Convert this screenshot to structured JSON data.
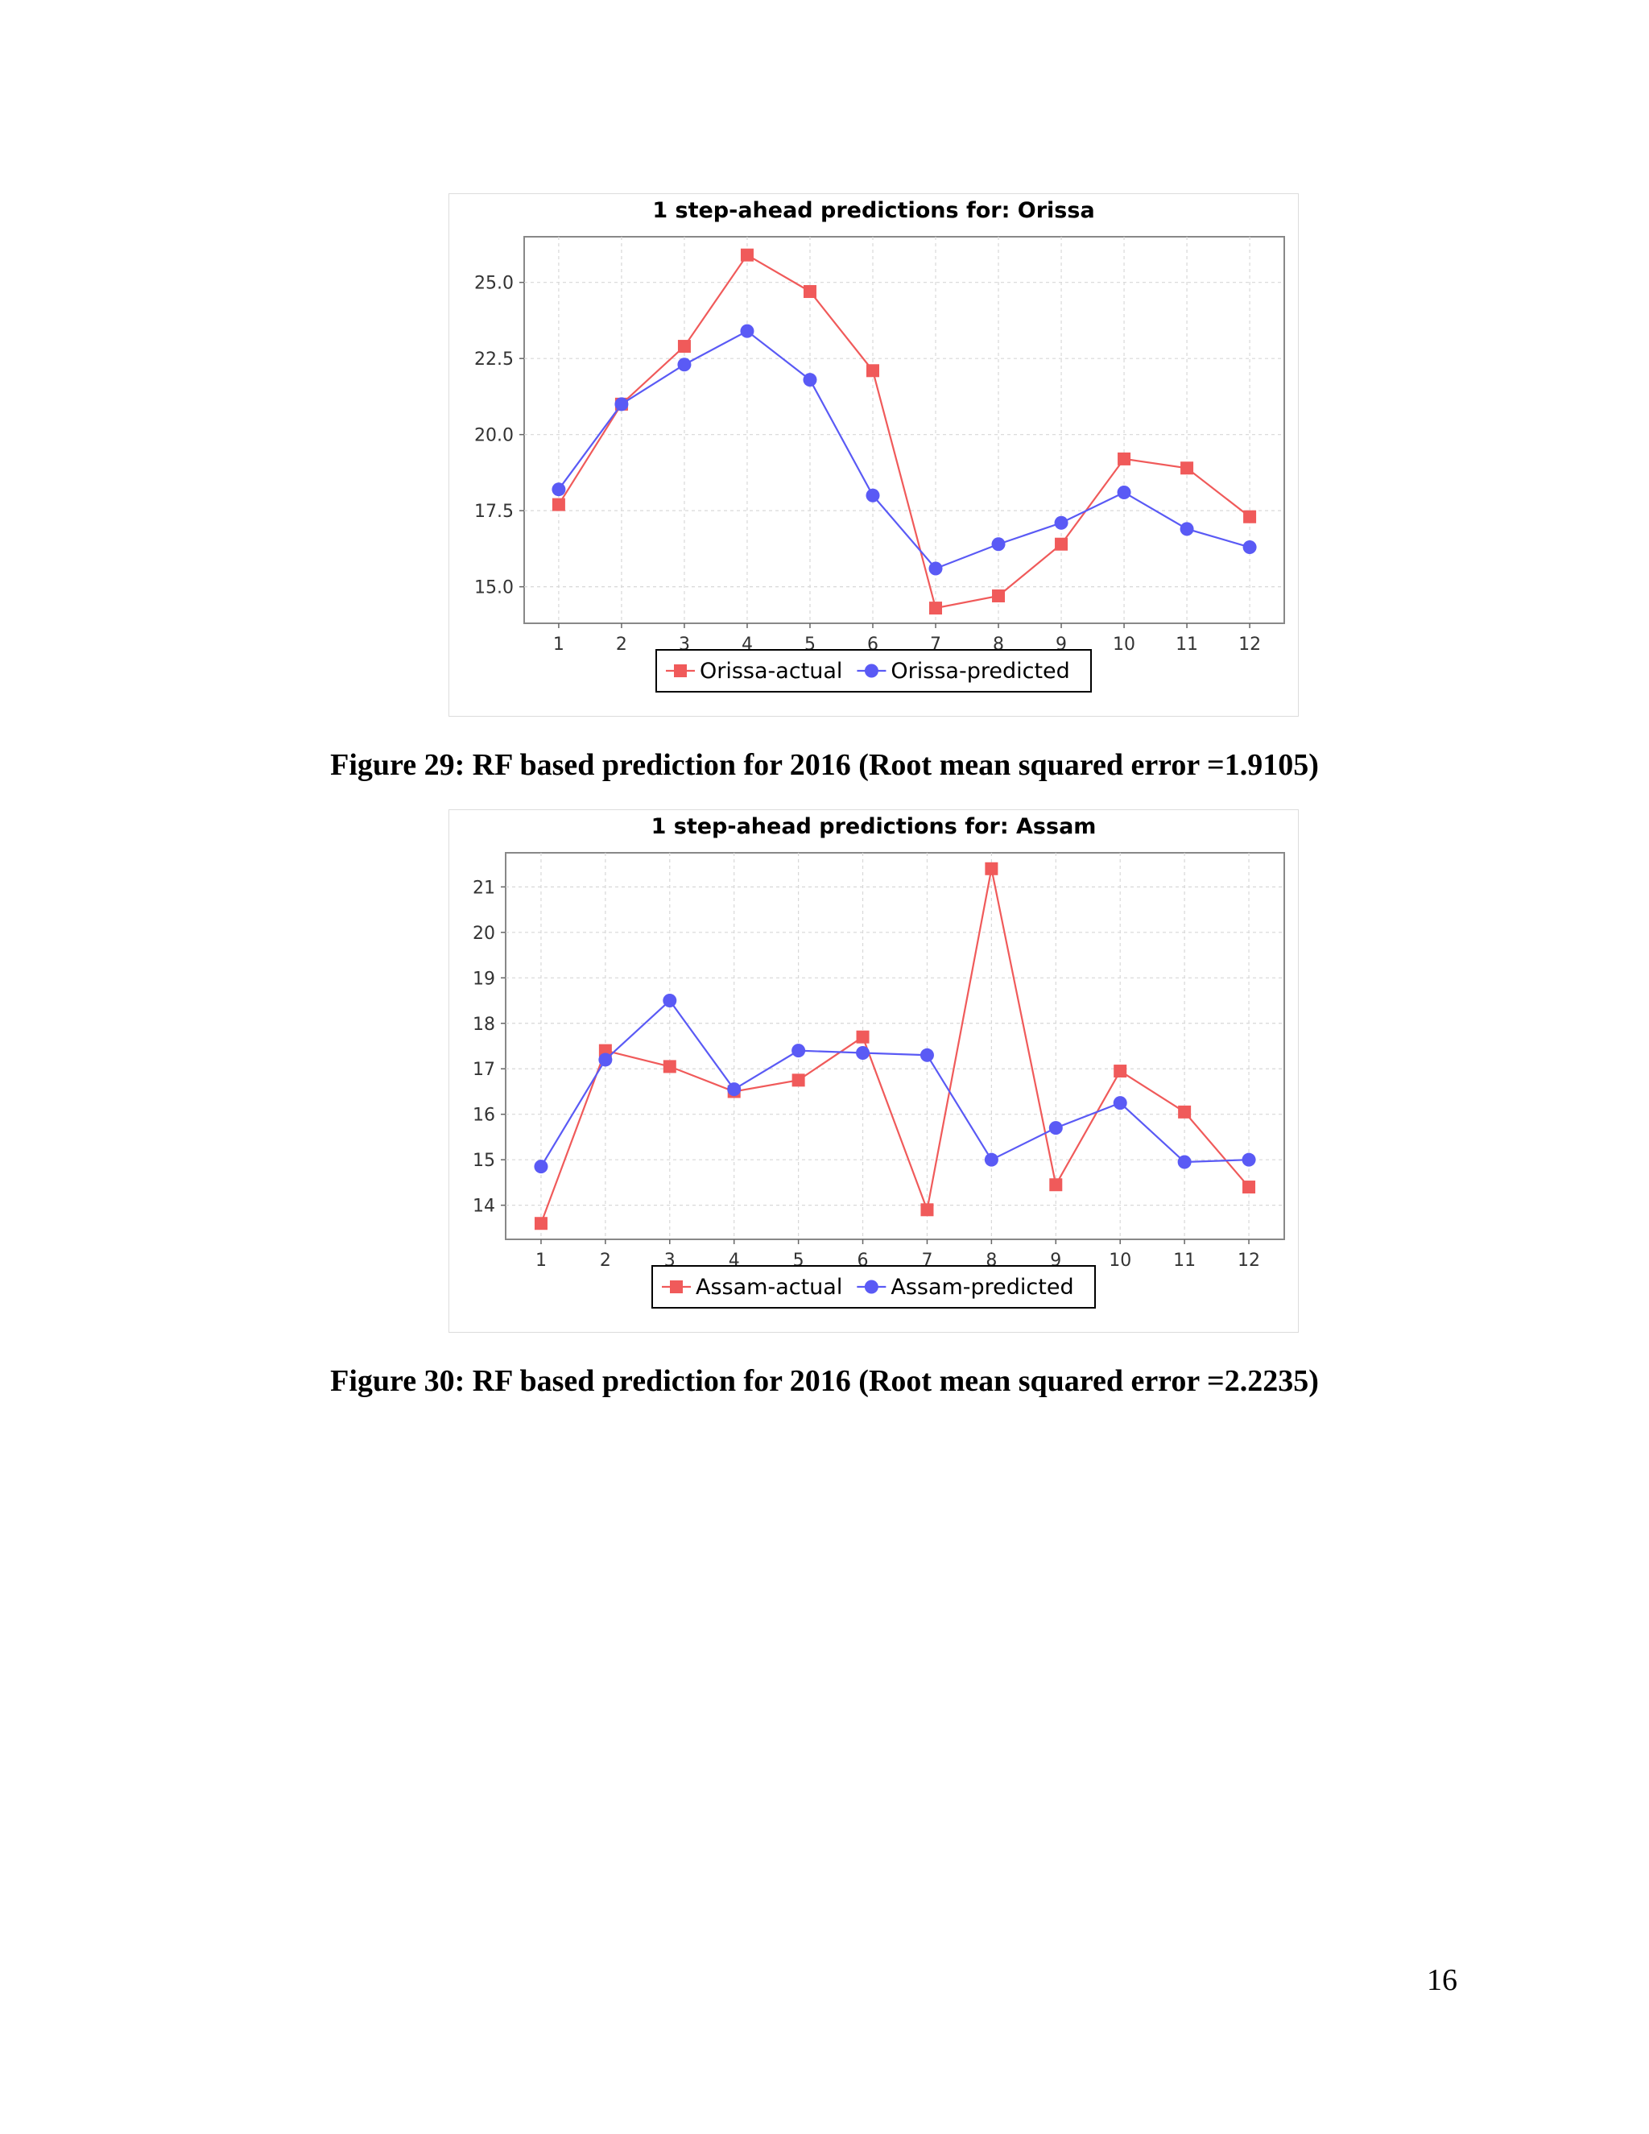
{
  "page": {
    "number": "16"
  },
  "colors": {
    "actual": "#f05a5a",
    "predicted": "#5a5af5"
  },
  "captions": [
    "Figure 29: RF based prediction for 2016 (Root mean squared error =1.9105)",
    "Figure 30: RF based prediction for 2016 (Root mean squared error =2.2235)"
  ],
  "chart_data": [
    {
      "type": "line",
      "title": "1 step-ahead predictions for: Orissa",
      "x": [
        1,
        2,
        3,
        4,
        5,
        6,
        7,
        8,
        9,
        10,
        11,
        12
      ],
      "xlim": [
        0.45,
        12.55
      ],
      "ylim": [
        13.8,
        26.5
      ],
      "y_ticks": [
        15.0,
        17.5,
        20.0,
        22.5,
        25.0
      ],
      "y_tick_labels": [
        "15.0",
        "17.5",
        "20.0",
        "22.5",
        "25.0"
      ],
      "grid": true,
      "legend_position": "bottom",
      "series": [
        {
          "name": "Orissa-actual",
          "color": "#f05a5a",
          "marker": "square",
          "values": [
            17.7,
            21.0,
            22.9,
            25.9,
            24.7,
            22.1,
            14.3,
            14.7,
            16.4,
            19.2,
            18.9,
            17.3
          ]
        },
        {
          "name": "Orissa-predicted",
          "color": "#5a5af5",
          "marker": "circle",
          "values": [
            18.2,
            21.0,
            22.3,
            23.4,
            21.8,
            18.0,
            15.6,
            16.4,
            17.1,
            18.1,
            16.9,
            16.3
          ]
        }
      ]
    },
    {
      "type": "line",
      "title": "1 step-ahead predictions for: Assam",
      "x": [
        1,
        2,
        3,
        4,
        5,
        6,
        7,
        8,
        9,
        10,
        11,
        12
      ],
      "xlim": [
        0.45,
        12.55
      ],
      "ylim": [
        13.25,
        21.75
      ],
      "y_ticks": [
        14,
        15,
        16,
        17,
        18,
        19,
        20,
        21
      ],
      "y_tick_labels": [
        "14",
        "15",
        "16",
        "17",
        "18",
        "19",
        "20",
        "21"
      ],
      "grid": true,
      "legend_position": "bottom",
      "series": [
        {
          "name": "Assam-actual",
          "color": "#f05a5a",
          "marker": "square",
          "values": [
            13.6,
            17.4,
            17.05,
            16.5,
            16.75,
            17.7,
            13.9,
            21.4,
            14.45,
            16.95,
            16.05,
            14.4
          ]
        },
        {
          "name": "Assam-predicted",
          "color": "#5a5af5",
          "marker": "circle",
          "values": [
            14.85,
            17.2,
            18.5,
            16.55,
            17.4,
            17.35,
            17.3,
            15.0,
            15.7,
            16.25,
            14.95,
            15.0
          ]
        }
      ]
    }
  ]
}
